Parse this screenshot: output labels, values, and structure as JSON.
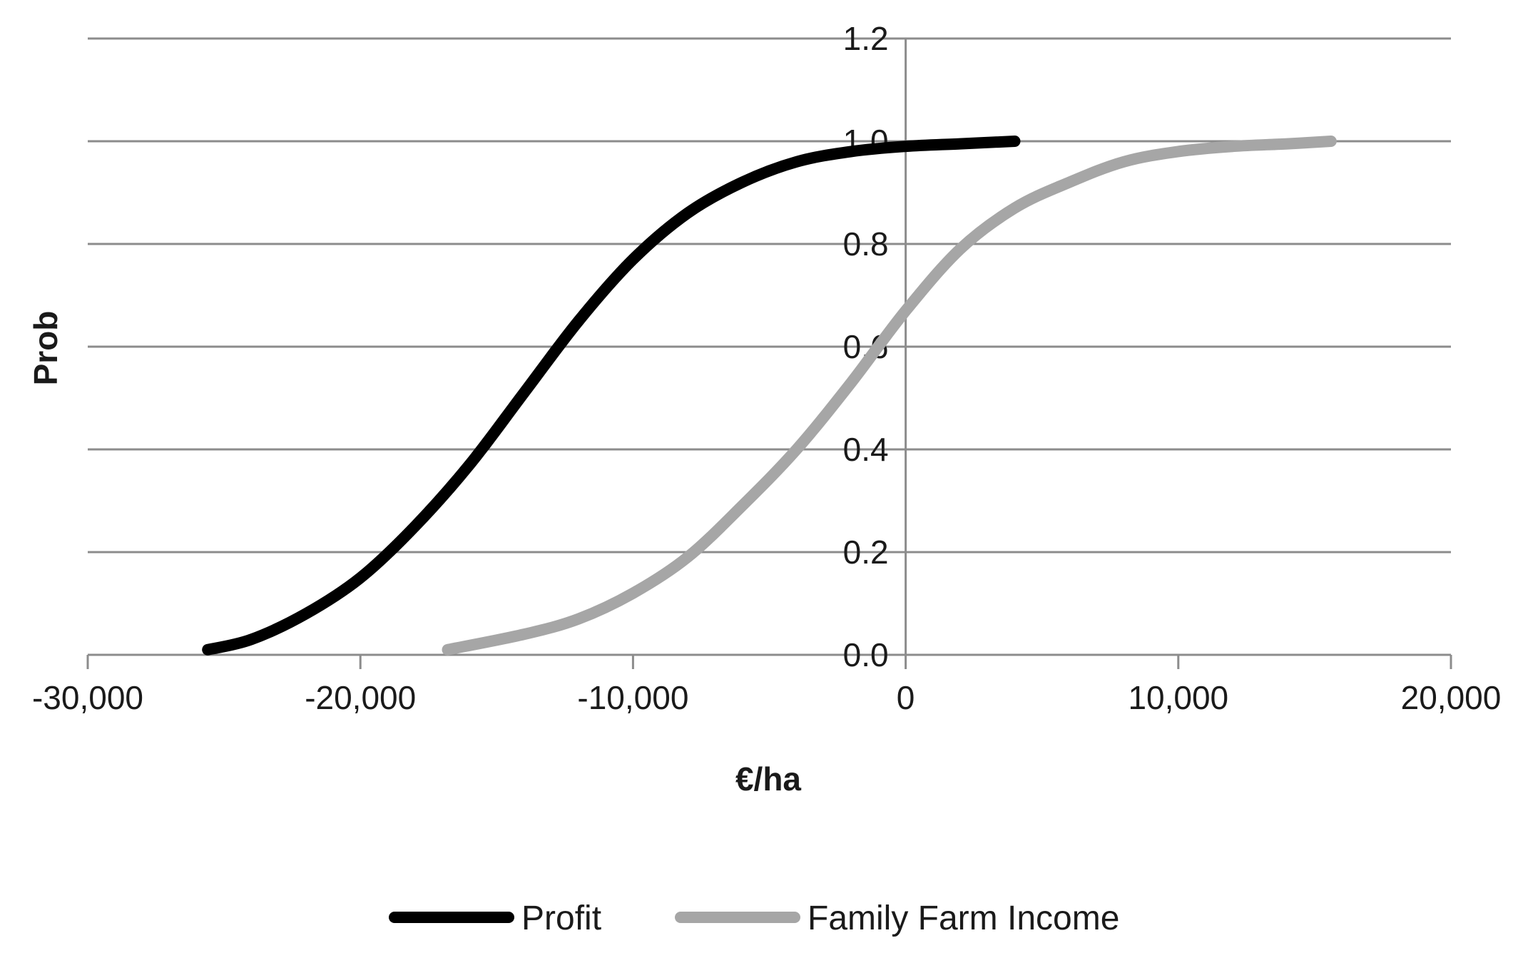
{
  "colors": {
    "gridline": "#8c8c8c",
    "axis": "#8c8c8c",
    "profit": "#000000",
    "family_farm_income": "#a6a6a6"
  },
  "chart_data": {
    "type": "line",
    "title": "",
    "xlabel": "€/ha",
    "ylabel": "Prob",
    "xlim": [
      -30000,
      20000
    ],
    "ylim": [
      0,
      1.2
    ],
    "x_ticks": [
      -30000,
      -20000,
      -10000,
      0,
      10000,
      20000
    ],
    "x_tick_labels": [
      "-30,000",
      "-20,000",
      "-10,000",
      "0",
      "10,000",
      "20,000"
    ],
    "y_ticks": [
      0,
      0.2,
      0.4,
      0.6,
      0.8,
      1.0,
      1.2
    ],
    "y_tick_labels": [
      "0.0",
      "0.2",
      "0.4",
      "0.6",
      "0.8",
      "1.0",
      "1.2"
    ],
    "grid": true,
    "legend_position": "bottom",
    "series": [
      {
        "name": "Profit",
        "color": "#000000",
        "x": [
          -25600,
          -24000,
          -22000,
          -20000,
          -18000,
          -16000,
          -14000,
          -12000,
          -10000,
          -8000,
          -6000,
          -4000,
          -2000,
          0,
          2000,
          4000
        ],
        "y": [
          0.01,
          0.03,
          0.08,
          0.15,
          0.25,
          0.37,
          0.51,
          0.65,
          0.77,
          0.86,
          0.92,
          0.96,
          0.98,
          0.99,
          0.995,
          1.0
        ]
      },
      {
        "name": "Family Farm Income",
        "color": "#a6a6a6",
        "x": [
          -16800,
          -14000,
          -12000,
          -10000,
          -8000,
          -6000,
          -4000,
          -2000,
          0,
          2000,
          4000,
          6000,
          8000,
          10000,
          12000,
          14000,
          15600
        ],
        "y": [
          0.01,
          0.04,
          0.07,
          0.12,
          0.19,
          0.29,
          0.4,
          0.53,
          0.67,
          0.79,
          0.87,
          0.92,
          0.96,
          0.98,
          0.99,
          0.995,
          1.0
        ]
      }
    ]
  }
}
